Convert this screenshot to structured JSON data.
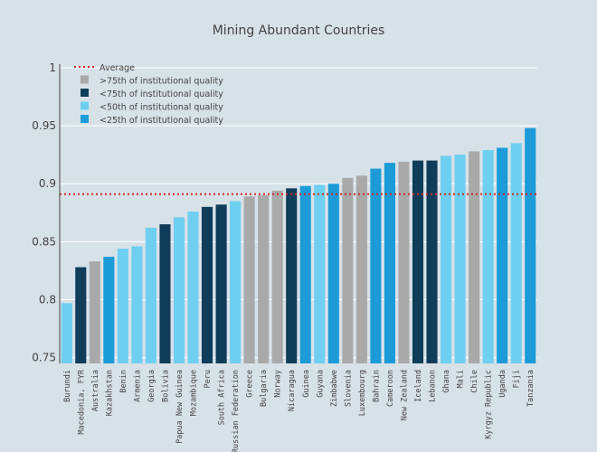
{
  "chart_data": {
    "type": "bar",
    "title": "Mining Abundant Countries",
    "xlabel": "",
    "ylabel": "",
    "ylim": [
      0.745,
      1.0
    ],
    "yticks": [
      0.75,
      0.8,
      0.85,
      0.9,
      0.95,
      1
    ],
    "ytick_labels": [
      "0.75",
      "0.8",
      "0.85",
      "0.9",
      "0.95",
      "1"
    ],
    "grid": true,
    "legend_position": "top-left",
    "average": {
      "name": "Average",
      "value": 0.891,
      "color": "#d62728"
    },
    "groups": [
      {
        "key": "gt75",
        "name": ">75th of institutional quality",
        "color": "#a9a9a9"
      },
      {
        "key": "lt75",
        "name": "<75th of institutional quality",
        "color": "#0f3d5a"
      },
      {
        "key": "lt50",
        "name": "<50th of institutional quality",
        "color": "#6ecff0"
      },
      {
        "key": "lt25",
        "name": "<25th of institutional quality",
        "color": "#1c9bd8"
      }
    ],
    "bars": [
      {
        "category": "Burundi",
        "value": 0.797,
        "group": "lt50"
      },
      {
        "category": "Macedonia, FYR",
        "value": 0.828,
        "group": "lt75"
      },
      {
        "category": "Australia",
        "value": 0.833,
        "group": "gt75"
      },
      {
        "category": "Kazakhstan",
        "value": 0.837,
        "group": "lt25"
      },
      {
        "category": "Benin",
        "value": 0.844,
        "group": "lt50"
      },
      {
        "category": "Armenia",
        "value": 0.846,
        "group": "lt50"
      },
      {
        "category": "Georgia",
        "value": 0.862,
        "group": "lt50"
      },
      {
        "category": "Bolivia",
        "value": 0.865,
        "group": "lt75"
      },
      {
        "category": "Papua New Guinea",
        "value": 0.871,
        "group": "lt50"
      },
      {
        "category": "Mozambique",
        "value": 0.876,
        "group": "lt50"
      },
      {
        "category": "Peru",
        "value": 0.88,
        "group": "lt75"
      },
      {
        "category": "South Africa",
        "value": 0.882,
        "group": "lt75"
      },
      {
        "category": "Russian Federation",
        "value": 0.885,
        "group": "lt50"
      },
      {
        "category": "Greece",
        "value": 0.889,
        "group": "gt75"
      },
      {
        "category": "Bulgaria",
        "value": 0.89,
        "group": "gt75"
      },
      {
        "category": "Norway",
        "value": 0.894,
        "group": "gt75"
      },
      {
        "category": "Nicaragua",
        "value": 0.896,
        "group": "lt75"
      },
      {
        "category": "Guinea",
        "value": 0.898,
        "group": "lt25"
      },
      {
        "category": "Guyana",
        "value": 0.899,
        "group": "lt50"
      },
      {
        "category": "Zimbabwe",
        "value": 0.9,
        "group": "lt25"
      },
      {
        "category": "Slovenia",
        "value": 0.905,
        "group": "gt75"
      },
      {
        "category": "Luxembourg",
        "value": 0.907,
        "group": "gt75"
      },
      {
        "category": "Bahrain",
        "value": 0.913,
        "group": "lt25"
      },
      {
        "category": "Cameroon",
        "value": 0.918,
        "group": "lt25"
      },
      {
        "category": "New Zealand",
        "value": 0.919,
        "group": "gt75"
      },
      {
        "category": "Iceland",
        "value": 0.92,
        "group": "lt75"
      },
      {
        "category": "Lebanon",
        "value": 0.92,
        "group": "lt75"
      },
      {
        "category": "Ghana",
        "value": 0.924,
        "group": "lt50"
      },
      {
        "category": "Mali",
        "value": 0.925,
        "group": "lt50"
      },
      {
        "category": "Chile",
        "value": 0.928,
        "group": "gt75"
      },
      {
        "category": "Kyrgyz Republic",
        "value": 0.929,
        "group": "lt50"
      },
      {
        "category": "Uganda",
        "value": 0.931,
        "group": "lt25"
      },
      {
        "category": "Fiji",
        "value": 0.935,
        "group": "lt50"
      },
      {
        "category": "Tanzania",
        "value": 0.948,
        "group": "lt25"
      }
    ]
  }
}
